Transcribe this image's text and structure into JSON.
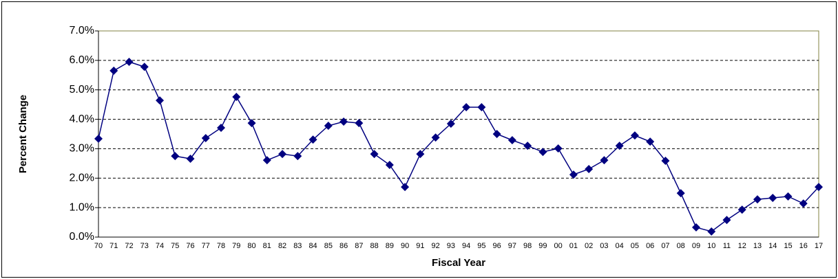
{
  "chart_data": {
    "type": "line",
    "x_label": "Fiscal Year",
    "y_label": "Percent Change",
    "categories": [
      "70",
      "71",
      "72",
      "73",
      "74",
      "75",
      "76",
      "77",
      "78",
      "79",
      "80",
      "81",
      "82",
      "83",
      "84",
      "85",
      "86",
      "87",
      "88",
      "89",
      "90",
      "91",
      "92",
      "93",
      "94",
      "95",
      "96",
      "97",
      "98",
      "99",
      "00",
      "01",
      "02",
      "03",
      "04",
      "05",
      "06",
      "07",
      "08",
      "09",
      "10",
      "11",
      "12",
      "13",
      "14",
      "15",
      "16",
      "17"
    ],
    "series": [
      {
        "name": "Percent Change",
        "color": "#000080",
        "values": [
          3.34,
          5.65,
          5.95,
          5.78,
          4.64,
          2.75,
          2.66,
          3.36,
          3.71,
          4.76,
          3.87,
          2.61,
          2.82,
          2.75,
          3.31,
          3.78,
          3.92,
          3.87,
          2.82,
          2.45,
          1.7,
          2.82,
          3.38,
          3.85,
          4.41,
          4.41,
          3.5,
          3.29,
          3.1,
          2.89,
          3.01,
          2.12,
          2.31,
          2.61,
          3.1,
          3.45,
          3.24,
          2.59,
          1.49,
          0.33,
          0.19,
          0.58,
          0.93,
          1.28,
          1.33,
          1.38,
          1.14,
          1.7
        ]
      }
    ],
    "ylim": [
      0,
      7
    ],
    "yticks": [
      {
        "value": 0,
        "label": "0.0%"
      },
      {
        "value": 1,
        "label": "1.0%"
      },
      {
        "value": 2,
        "label": "2.0%"
      },
      {
        "value": 3,
        "label": "3.0%"
      },
      {
        "value": 4,
        "label": "4.0%"
      },
      {
        "value": 5,
        "label": "5.0%"
      },
      {
        "value": 6,
        "label": "6.0%"
      },
      {
        "value": 7,
        "label": "7.0%"
      }
    ],
    "grid": true
  }
}
